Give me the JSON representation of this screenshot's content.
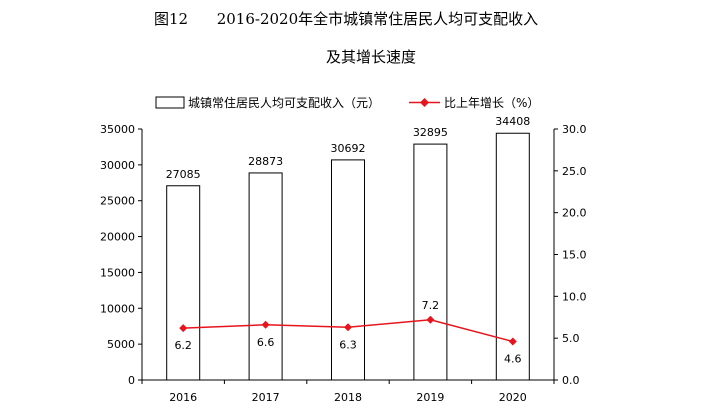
{
  "title": {
    "line1": "图12      2016-2020年全市城镇常住居民人均可支配收入",
    "line2": "及其增长速度"
  },
  "chart_data": {
    "type": "bar",
    "categories": [
      "2016",
      "2017",
      "2018",
      "2019",
      "2020"
    ],
    "series": [
      {
        "name": "城镇常住居民人均可支配收入（元）",
        "kind": "bar",
        "axis": "left",
        "values": [
          27085,
          28873,
          30692,
          32895,
          34408
        ],
        "labels": [
          "27085",
          "28873",
          "30692",
          "32895",
          "34408"
        ],
        "color": "#000000",
        "fill": "#ffffff"
      },
      {
        "name": "比上年增长（%）",
        "kind": "line",
        "axis": "right",
        "values": [
          6.2,
          6.6,
          6.3,
          7.2,
          4.6
        ],
        "labels": [
          "6.2",
          "6.6",
          "6.3",
          "7.2",
          "4.6"
        ],
        "color": "#e8141d",
        "marker": "diamond"
      }
    ],
    "ylim_left": [
      0,
      35000
    ],
    "yticks_left": [
      "0",
      "5000",
      "10000",
      "15000",
      "20000",
      "25000",
      "30000",
      "35000"
    ],
    "ylim_right": [
      0,
      30
    ],
    "yticks_right": [
      "0.0",
      "5.0",
      "10.0",
      "15.0",
      "20.0",
      "25.0",
      "30.0"
    ],
    "grid": false,
    "legend_position": "top"
  }
}
